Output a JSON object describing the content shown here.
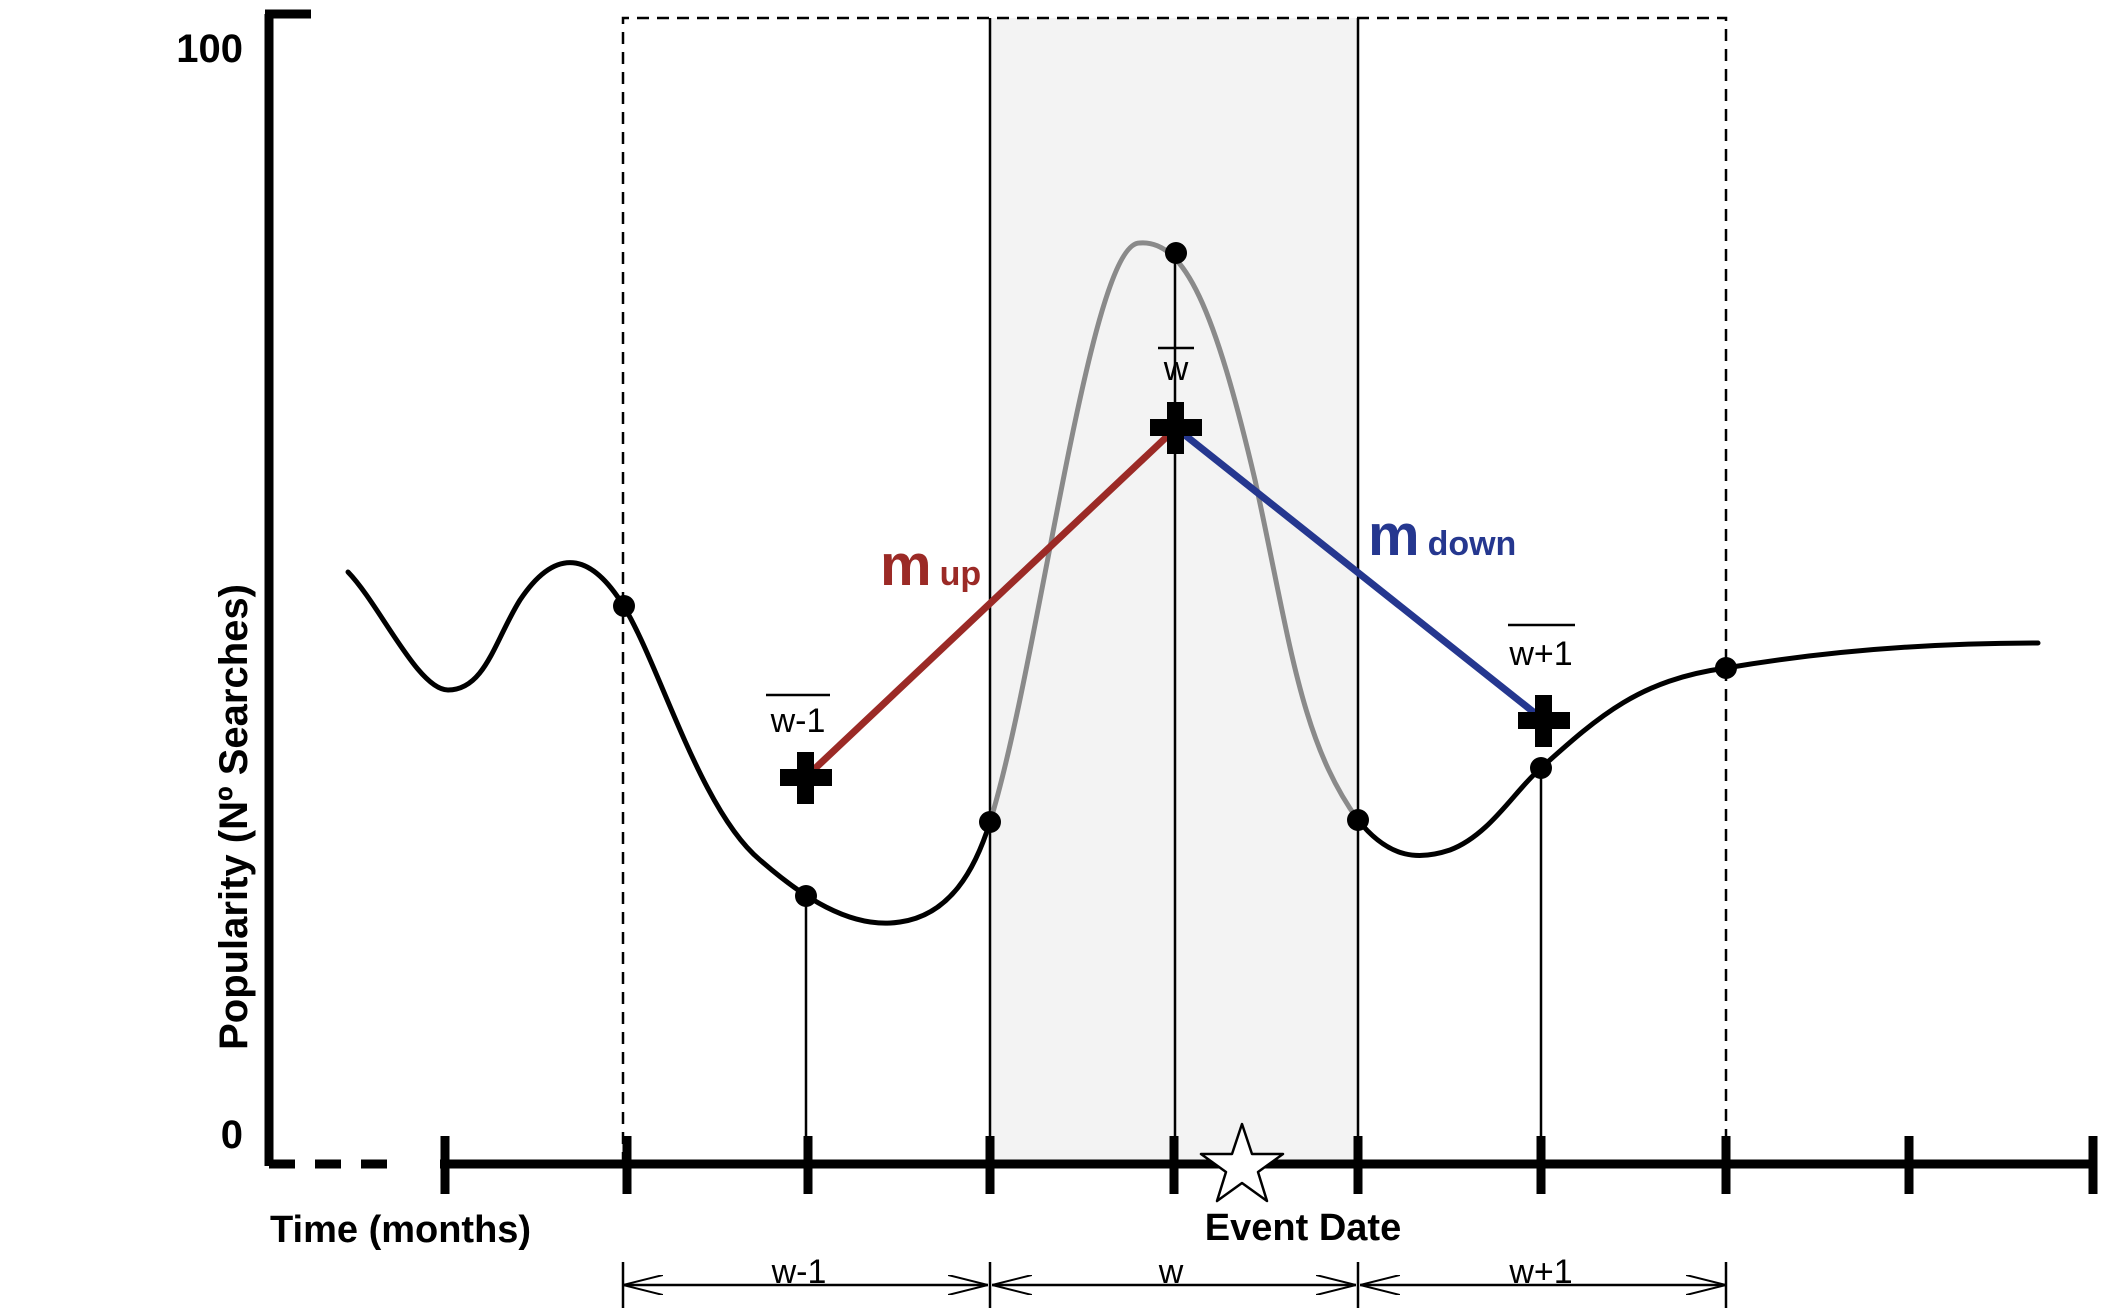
{
  "axis": {
    "y_label": "Popularity (Nº Searches)",
    "x_label": "Time (months)",
    "y_max_label": "100",
    "y_min_label": "0",
    "event_label": "Event Date"
  },
  "windows": {
    "prev": "w-1",
    "curr": "w",
    "next": "w+1"
  },
  "means": {
    "prev": "w-1",
    "curr": "w",
    "next": "w+1"
  },
  "slopes": {
    "up_main": "m",
    "up_sub": "up",
    "down_main": "m",
    "down_sub": "down"
  },
  "colors": {
    "up": "#9b2a26",
    "down": "#25378f",
    "peak_curve": "#8a8a8a",
    "curve": "#000000",
    "window_shade": "#f3f3f3"
  }
}
